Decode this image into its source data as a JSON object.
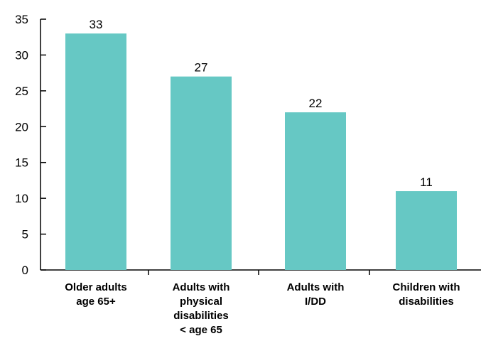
{
  "chart_data": {
    "type": "bar",
    "title": "",
    "xlabel": "",
    "ylabel": "",
    "ylim": [
      0,
      35
    ],
    "yticks": [
      0,
      5,
      10,
      15,
      20,
      25,
      30,
      35
    ],
    "grid": false,
    "legend": "none",
    "bar_color": "#66c8c4",
    "categories": [
      [
        "Older adults",
        "age 65+"
      ],
      [
        "Adults with",
        "physical",
        "disabilities",
        "< age 65"
      ],
      [
        "Adults with",
        "I/DD"
      ],
      [
        "Children with",
        "disabilities"
      ]
    ],
    "values": [
      33,
      27,
      22,
      11
    ]
  }
}
